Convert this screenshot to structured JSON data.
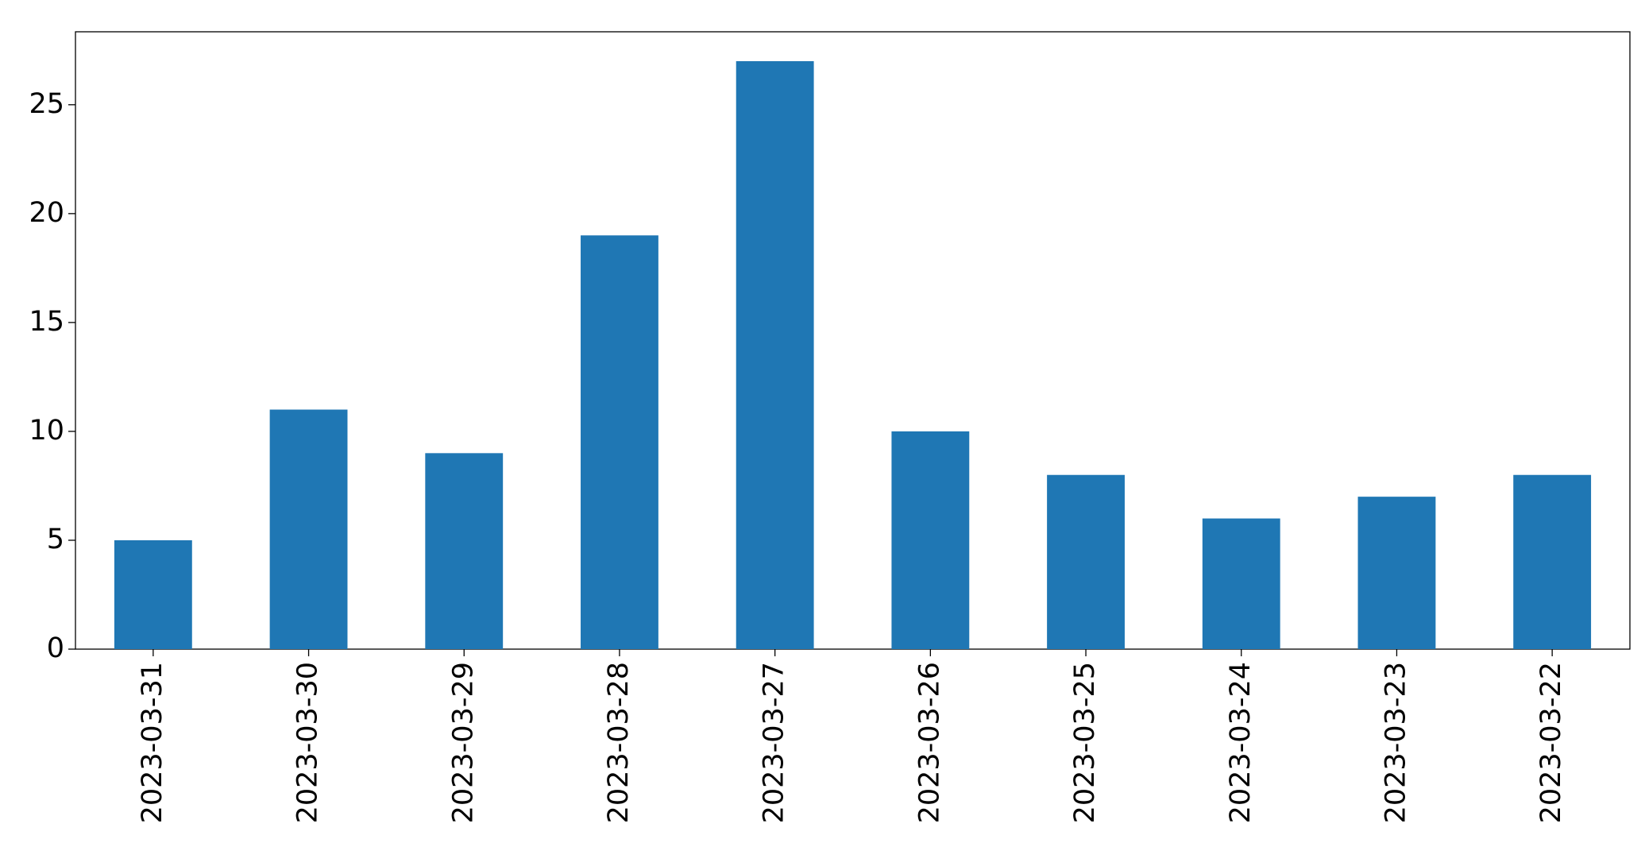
{
  "chart_data": {
    "type": "bar",
    "categories": [
      "2023-03-31",
      "2023-03-30",
      "2023-03-29",
      "2023-03-28",
      "2023-03-27",
      "2023-03-26",
      "2023-03-25",
      "2023-03-24",
      "2023-03-23",
      "2023-03-22"
    ],
    "values": [
      5,
      11,
      9,
      19,
      27,
      10,
      8,
      6,
      7,
      8
    ],
    "color": "#1f77b4",
    "ylim": [
      0,
      28.35
    ],
    "yticks": [
      0,
      5,
      10,
      15,
      20,
      25
    ],
    "grid": false
  }
}
